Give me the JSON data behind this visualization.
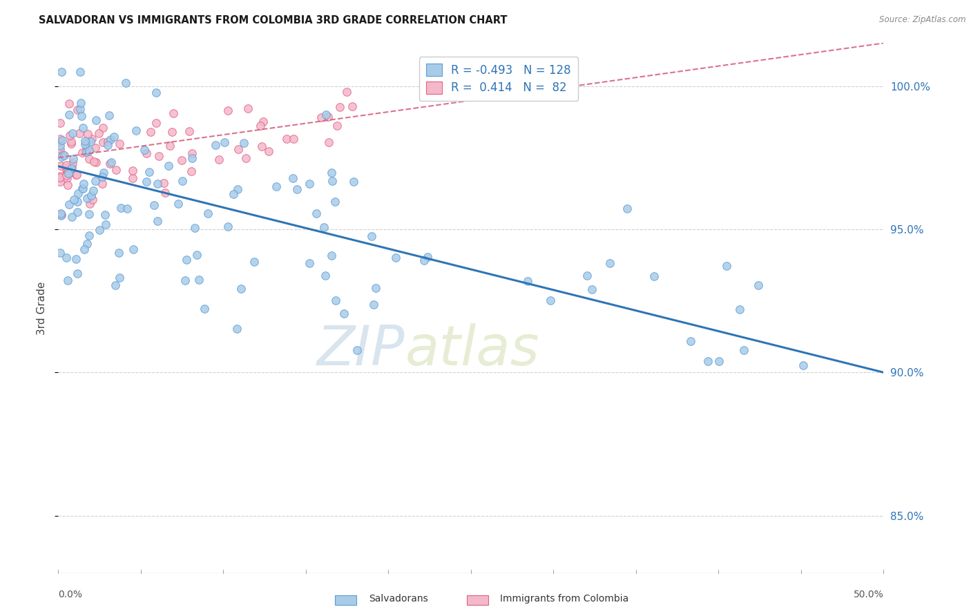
{
  "title": "SALVADORAN VS IMMIGRANTS FROM COLOMBIA 3RD GRADE CORRELATION CHART",
  "source": "Source: ZipAtlas.com",
  "ylabel": "3rd Grade",
  "y_min": 83.0,
  "y_max": 101.5,
  "x_min": 0.0,
  "x_max": 50.0,
  "blue_R": "-0.493",
  "blue_N": "128",
  "pink_R": "0.414",
  "pink_N": "82",
  "legend_label_blue": "Salvadorans",
  "legend_label_pink": "Immigrants from Colombia",
  "blue_color": "#a8cce8",
  "blue_edge_color": "#5b9bd5",
  "blue_line_color": "#2e75b6",
  "pink_color": "#f4b8cb",
  "pink_edge_color": "#e06080",
  "pink_line_color": "#d45a78",
  "background_color": "#ffffff",
  "grid_color": "#d0d0d0",
  "watermark_text": "ZIPatlas",
  "watermark_color": "#c8d8e8",
  "y_ticks": [
    85.0,
    90.0,
    95.0,
    100.0
  ],
  "y_tick_labels": [
    "85.0%",
    "90.0%",
    "95.0%",
    "100.0%"
  ],
  "blue_line_x0": 0.0,
  "blue_line_y0": 97.2,
  "blue_line_x1": 50.0,
  "blue_line_y1": 90.0,
  "pink_line_x0": 0.0,
  "pink_line_y0": 97.5,
  "pink_line_x1": 50.0,
  "pink_line_y1": 101.5
}
